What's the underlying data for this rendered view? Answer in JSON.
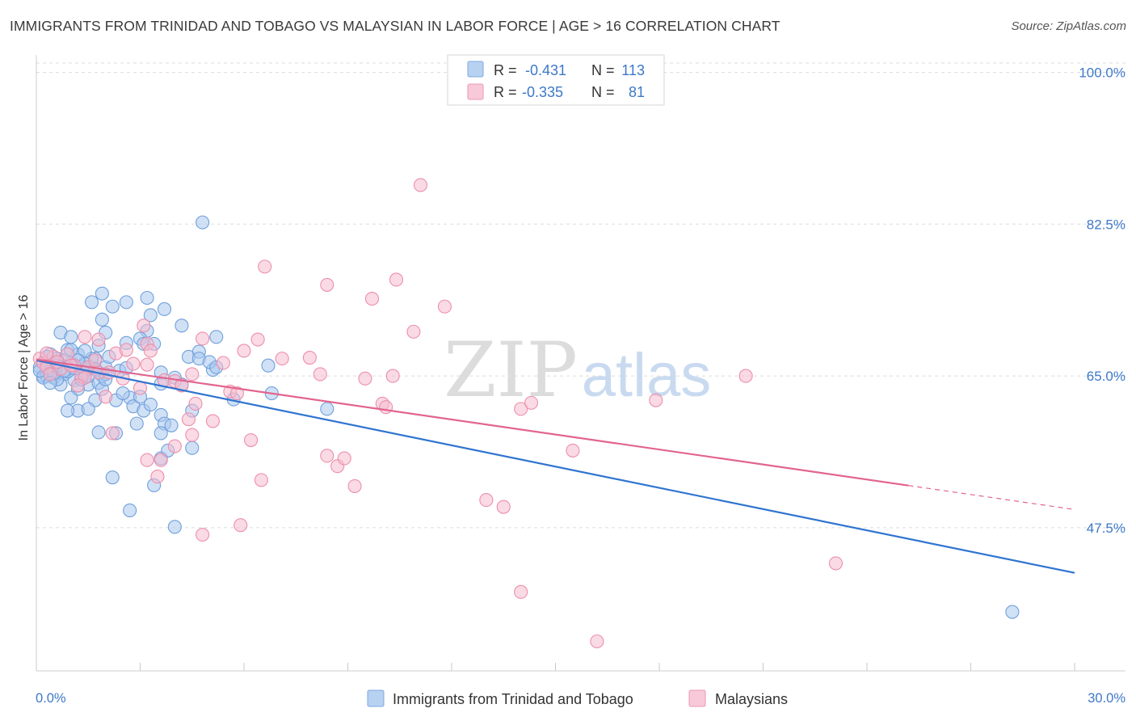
{
  "title": "IMMIGRANTS FROM TRINIDAD AND TOBAGO VS MALAYSIAN IN LABOR FORCE | AGE > 16 CORRELATION CHART",
  "source": "Source: ZipAtlas.com",
  "watermark": {
    "zip": "ZIP",
    "atlas": "atlas"
  },
  "colors": {
    "blue_fill": "#a9c8ee",
    "blue_stroke": "#6f9fdb",
    "blue_line": "#2f74d0",
    "pink_fill": "#f6bccd",
    "pink_stroke": "#ec8fab",
    "pink_line": "#e2648f",
    "axis_label": "#3d78c9",
    "grid": "#dddddd"
  },
  "legend": {
    "rows": [
      {
        "r_label": "R =",
        "r_value": "-0.431",
        "n_label": "N =",
        "n_value": "113",
        "series": "blue"
      },
      {
        "r_label": "R =",
        "r_value": "-0.335",
        "n_label": "N =",
        "n_value": "81",
        "series": "pink"
      }
    ]
  },
  "chart_data": {
    "type": "scatter",
    "xlabel": "",
    "ylabel": "In Labor Force | Age > 16",
    "xlim": [
      0,
      30
    ],
    "ylim": [
      31,
      102
    ],
    "x_tick_labels": [
      "0.0%",
      "30.0%"
    ],
    "y_ticks": [
      100,
      82.5,
      65,
      47.5
    ],
    "y_tick_labels": [
      "100.0%",
      "82.5%",
      "65.0%",
      "47.5%"
    ],
    "grid": "horizontal dashed",
    "legend_position": "bottom",
    "series": [
      {
        "name": "Immigrants from Trinidad and Tobago",
        "color": "blue",
        "trend": {
          "x0": 0,
          "y0": 66.8,
          "x1": 30,
          "y1": 42.3,
          "dashed_from": null
        },
        "points": [
          [
            0.1,
            66
          ],
          [
            0.2,
            65
          ],
          [
            0.3,
            66.5
          ],
          [
            0.4,
            65.5
          ],
          [
            0.5,
            64.8
          ],
          [
            0.6,
            67
          ],
          [
            0.7,
            66
          ],
          [
            0.8,
            65.2
          ],
          [
            0.9,
            68
          ],
          [
            1.0,
            66.5
          ],
          [
            1.1,
            64.5
          ],
          [
            1.2,
            67.5
          ],
          [
            1.3,
            66
          ],
          [
            1.4,
            65.5
          ],
          [
            1.5,
            64
          ],
          [
            1.6,
            66
          ],
          [
            1.7,
            67
          ],
          [
            1.8,
            68.5
          ],
          [
            1.9,
            65
          ],
          [
            2.0,
            66
          ],
          [
            0.3,
            65
          ],
          [
            0.5,
            66.2
          ],
          [
            0.7,
            64
          ],
          [
            0.9,
            65.5
          ],
          [
            1.2,
            63.5
          ],
          [
            1.5,
            65.8
          ],
          [
            1.8,
            64.2
          ],
          [
            2.1,
            67.2
          ],
          [
            0.4,
            67.5
          ],
          [
            0.6,
            64.6
          ],
          [
            0.2,
            64.8
          ],
          [
            0.8,
            66.8
          ],
          [
            1.0,
            68
          ],
          [
            1.3,
            64.6
          ],
          [
            1.6,
            67
          ],
          [
            0.1,
            65.6
          ],
          [
            0.3,
            67.2
          ],
          [
            0.5,
            65.3
          ],
          [
            1.4,
            66.4
          ],
          [
            2.0,
            65.2
          ],
          [
            0.7,
            70
          ],
          [
            1.0,
            69.5
          ],
          [
            1.6,
            73.5
          ],
          [
            1.9,
            74.5
          ],
          [
            2.2,
            73
          ],
          [
            1.9,
            71.5
          ],
          [
            2.0,
            70
          ],
          [
            2.6,
            73.5
          ],
          [
            3.2,
            74
          ],
          [
            3.3,
            72
          ],
          [
            3.7,
            72.7
          ],
          [
            3.2,
            70.2
          ],
          [
            4.2,
            70.8
          ],
          [
            2.6,
            68.8
          ],
          [
            3.0,
            69.3
          ],
          [
            3.1,
            68.7
          ],
          [
            3.4,
            68.7
          ],
          [
            4.4,
            67.2
          ],
          [
            4.7,
            67.8
          ],
          [
            5.2,
            69.5
          ],
          [
            5.1,
            65.7
          ],
          [
            3.6,
            64.1
          ],
          [
            4.0,
            64.8
          ],
          [
            4.2,
            64
          ],
          [
            2.7,
            62.5
          ],
          [
            2.8,
            61.5
          ],
          [
            3.0,
            62.6
          ],
          [
            3.1,
            61
          ],
          [
            1.9,
            63.5
          ],
          [
            1.7,
            62.2
          ],
          [
            2.3,
            62.2
          ],
          [
            1.0,
            62.5
          ],
          [
            1.2,
            61
          ],
          [
            1.5,
            61.2
          ],
          [
            0.9,
            61
          ],
          [
            3.6,
            60.5
          ],
          [
            3.7,
            59.5
          ],
          [
            4.5,
            61
          ],
          [
            2.9,
            59.5
          ],
          [
            3.9,
            59.3
          ],
          [
            1.8,
            58.5
          ],
          [
            2.3,
            58.4
          ],
          [
            3.6,
            58.4
          ],
          [
            4.5,
            56.7
          ],
          [
            3.6,
            55.5
          ],
          [
            2.2,
            53.3
          ],
          [
            2.7,
            49.5
          ],
          [
            4.8,
            82.7
          ],
          [
            8.4,
            61.2
          ],
          [
            6.7,
            66.2
          ],
          [
            5.7,
            62.3
          ],
          [
            6.8,
            63
          ],
          [
            4.7,
            67
          ],
          [
            5.0,
            66.6
          ],
          [
            4.0,
            47.6
          ],
          [
            3.4,
            52.4
          ],
          [
            3.8,
            56.4
          ],
          [
            3.6,
            65.4
          ],
          [
            5.2,
            66
          ],
          [
            28.2,
            37.8
          ],
          [
            0.6,
            66.2
          ],
          [
            1.1,
            65.9
          ],
          [
            1.4,
            67.9
          ],
          [
            0.8,
            65.6
          ],
          [
            1.7,
            65.8
          ],
          [
            2.4,
            65.6
          ],
          [
            0.4,
            64.2
          ],
          [
            1.2,
            66.8
          ],
          [
            2.0,
            64.6
          ],
          [
            3.3,
            61.7
          ],
          [
            2.5,
            63
          ],
          [
            1.5,
            65
          ],
          [
            2.6,
            65.9
          ]
        ]
      },
      {
        "name": "Malaysians",
        "color": "pink",
        "trend": {
          "x0": 0,
          "y0": 66.9,
          "x1": 30,
          "y1": 49.6,
          "dashed_from": 25.2
        },
        "points": [
          [
            0.1,
            67
          ],
          [
            0.2,
            66.5
          ],
          [
            0.3,
            66
          ],
          [
            0.5,
            67.2
          ],
          [
            0.7,
            65.8
          ],
          [
            0.9,
            67.5
          ],
          [
            1.1,
            66.2
          ],
          [
            1.3,
            65
          ],
          [
            1.5,
            66
          ],
          [
            1.8,
            65.4
          ],
          [
            0.3,
            67.6
          ],
          [
            0.6,
            66.6
          ],
          [
            1.0,
            66.2
          ],
          [
            1.4,
            64.8
          ],
          [
            1.7,
            66.8
          ],
          [
            2.1,
            65.4
          ],
          [
            2.3,
            67.6
          ],
          [
            2.5,
            64.7
          ],
          [
            2.8,
            66.4
          ],
          [
            3.0,
            63.6
          ],
          [
            1.4,
            69.5
          ],
          [
            1.8,
            69.2
          ],
          [
            3.1,
            70.8
          ],
          [
            3.2,
            68.7
          ],
          [
            3.3,
            67.9
          ],
          [
            3.7,
            64.5
          ],
          [
            4.0,
            64.4
          ],
          [
            4.2,
            63.9
          ],
          [
            4.5,
            65.2
          ],
          [
            4.6,
            61.8
          ],
          [
            4.5,
            58.2
          ],
          [
            4.8,
            69.3
          ],
          [
            5.4,
            66.5
          ],
          [
            5.6,
            63.2
          ],
          [
            5.8,
            63
          ],
          [
            6.0,
            67.9
          ],
          [
            6.2,
            57.6
          ],
          [
            6.5,
            53
          ],
          [
            6.6,
            77.6
          ],
          [
            6.4,
            69.2
          ],
          [
            7.1,
            67
          ],
          [
            7.9,
            67.1
          ],
          [
            8.2,
            65.2
          ],
          [
            8.4,
            55.8
          ],
          [
            8.7,
            54.6
          ],
          [
            8.4,
            75.5
          ],
          [
            8.9,
            55.5
          ],
          [
            9.2,
            52.3
          ],
          [
            9.5,
            64.7
          ],
          [
            9.7,
            73.9
          ],
          [
            10.0,
            61.8
          ],
          [
            10.1,
            61.4
          ],
          [
            10.3,
            65
          ],
          [
            10.4,
            76.1
          ],
          [
            10.9,
            70.1
          ],
          [
            11.1,
            87
          ],
          [
            11.8,
            73
          ],
          [
            14.0,
            61.2
          ],
          [
            14.3,
            61.9
          ],
          [
            15.5,
            56.4
          ],
          [
            13.0,
            50.7
          ],
          [
            13.5,
            49.9
          ],
          [
            14.0,
            40.1
          ],
          [
            16.2,
            34.4
          ],
          [
            17.9,
            62.2
          ],
          [
            20.5,
            65
          ],
          [
            23.1,
            43.4
          ],
          [
            4.8,
            46.7
          ],
          [
            5.9,
            47.8
          ],
          [
            3.2,
            55.3
          ],
          [
            3.6,
            55.3
          ],
          [
            3.5,
            53.4
          ],
          [
            4.0,
            56.9
          ],
          [
            3.2,
            66.3
          ],
          [
            2.6,
            68
          ],
          [
            4.4,
            60
          ],
          [
            5.1,
            59.8
          ],
          [
            2.0,
            62.6
          ],
          [
            2.2,
            58.4
          ],
          [
            0.4,
            65.2
          ],
          [
            1.2,
            63.9
          ]
        ]
      }
    ]
  }
}
